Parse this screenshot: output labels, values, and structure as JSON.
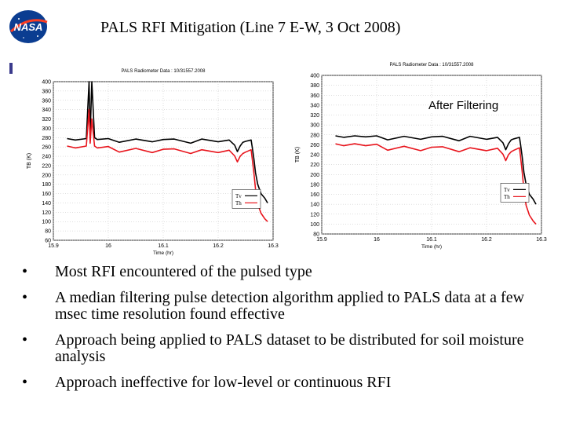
{
  "slide": {
    "title": "PALS RFI Mitigation (Line 7 E-W, 3 Oct 2008)",
    "after_label": "After Filtering",
    "logo_text": "NASA",
    "bullets": [
      "Most RFI encountered of the pulsed type",
      "A median filtering pulse detection algorithm applied to PALS data at a few msec time resolution found effective",
      "Approach being applied to PALS dataset to be distributed for soil moisture analysis",
      "Approach ineffective for low-level or continuous RFI"
    ]
  },
  "colors": {
    "tv": "#000000",
    "th": "#e8141c",
    "grid": "#bfbfbf",
    "logo": "#0b3d91",
    "logo_red": "#fc3d21"
  },
  "chart_data": [
    {
      "type": "line",
      "title": "PALS Radiometer Data : 10/31557.2008",
      "xlabel": "Time (hr)",
      "ylabel": "TB (K)",
      "xlim": [
        15.9,
        16.3
      ],
      "ylim": [
        60,
        400
      ],
      "xticks": [
        15.9,
        16,
        16.1,
        16.2,
        16.3
      ],
      "yticks": [
        60,
        80,
        100,
        120,
        140,
        160,
        180,
        200,
        220,
        240,
        260,
        280,
        300,
        320,
        340,
        360,
        380,
        400
      ],
      "grid": true,
      "legend_position": "right",
      "series": [
        {
          "name": "Tv",
          "x": [
            15.925,
            15.94,
            15.96,
            15.965,
            15.967,
            15.97,
            15.975,
            15.98,
            16.0,
            16.02,
            16.05,
            16.08,
            16.1,
            16.12,
            16.15,
            16.17,
            16.2,
            16.22,
            16.23,
            16.235,
            16.24,
            16.245,
            16.25,
            16.26,
            16.262,
            16.265,
            16.268,
            16.272,
            16.278,
            16.285,
            16.29
          ],
          "y": [
            278,
            275,
            278,
            400,
            285,
            400,
            280,
            276,
            278,
            270,
            277,
            271,
            276,
            277,
            268,
            277,
            271,
            275,
            264,
            250,
            262,
            270,
            272,
            275,
            260,
            235,
            205,
            180,
            160,
            150,
            140
          ]
        },
        {
          "name": "Th",
          "x": [
            15.925,
            15.94,
            15.96,
            15.965,
            15.967,
            15.97,
            15.975,
            15.98,
            16.0,
            16.02,
            16.05,
            16.08,
            16.1,
            16.12,
            16.15,
            16.17,
            16.2,
            16.22,
            16.23,
            16.235,
            16.24,
            16.245,
            16.25,
            16.26,
            16.262,
            16.265,
            16.268,
            16.272,
            16.278,
            16.285,
            16.29
          ],
          "y": [
            262,
            258,
            262,
            340,
            268,
            320,
            262,
            258,
            261,
            249,
            257,
            248,
            255,
            256,
            246,
            254,
            248,
            253,
            241,
            228,
            240,
            246,
            249,
            254,
            235,
            205,
            170,
            138,
            118,
            106,
            100
          ]
        }
      ]
    },
    {
      "type": "line",
      "title": "PALS Radiometer Data : 10/31557.2008",
      "xlabel": "Time (hr)",
      "ylabel": "TB (K)",
      "xlim": [
        15.9,
        16.3
      ],
      "ylim": [
        80,
        400
      ],
      "xticks": [
        15.9,
        16,
        16.1,
        16.2,
        16.3
      ],
      "yticks": [
        80,
        100,
        120,
        140,
        160,
        180,
        200,
        220,
        240,
        260,
        280,
        300,
        320,
        340,
        360,
        380,
        400
      ],
      "grid": true,
      "legend_position": "right",
      "series": [
        {
          "name": "Tv",
          "x": [
            15.925,
            15.94,
            15.96,
            15.98,
            16.0,
            16.02,
            16.05,
            16.08,
            16.1,
            16.12,
            16.15,
            16.17,
            16.2,
            16.22,
            16.23,
            16.235,
            16.24,
            16.245,
            16.25,
            16.26,
            16.262,
            16.265,
            16.268,
            16.272,
            16.278,
            16.285,
            16.29
          ],
          "y": [
            278,
            275,
            278,
            276,
            278,
            270,
            277,
            271,
            276,
            277,
            268,
            277,
            271,
            275,
            264,
            250,
            262,
            270,
            272,
            275,
            260,
            235,
            205,
            180,
            160,
            150,
            140
          ]
        },
        {
          "name": "Th",
          "x": [
            15.925,
            15.94,
            15.96,
            15.98,
            16.0,
            16.02,
            16.05,
            16.08,
            16.1,
            16.12,
            16.15,
            16.17,
            16.2,
            16.22,
            16.23,
            16.235,
            16.24,
            16.245,
            16.25,
            16.26,
            16.262,
            16.265,
            16.268,
            16.272,
            16.278,
            16.285,
            16.29
          ],
          "y": [
            262,
            258,
            262,
            258,
            261,
            249,
            257,
            248,
            255,
            256,
            246,
            254,
            248,
            253,
            241,
            228,
            240,
            246,
            249,
            254,
            235,
            205,
            170,
            138,
            118,
            106,
            100
          ]
        }
      ]
    }
  ]
}
